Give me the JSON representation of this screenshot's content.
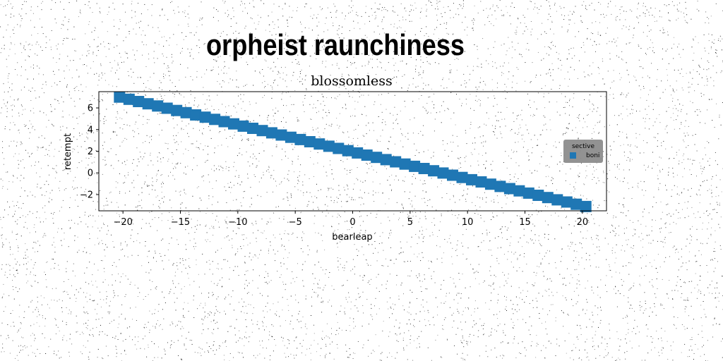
{
  "page": {
    "background": "#ffffff",
    "noise_color": "#000000"
  },
  "figure": {
    "suptitle": "orpheist raunchiness"
  },
  "chart_data": {
    "type": "line",
    "title": "blossomless",
    "xlabel": "bearleap",
    "ylabel": "retempt",
    "xlim": [
      -22.1,
      22.1
    ],
    "ylim": [
      -3.5,
      7.5
    ],
    "xticks": [
      -20,
      -15,
      -10,
      -5,
      0,
      5,
      10,
      15,
      20
    ],
    "yticks": [
      -2,
      0,
      2,
      4,
      6
    ],
    "grid": false,
    "legend": {
      "title": "sective",
      "placement": "center-right",
      "background": "#8c8c8c"
    },
    "series": [
      {
        "name": "boni",
        "color": "#1f77b4",
        "marker": "square",
        "x_start": -20.3,
        "x_end": 20.3,
        "y_start": 7.0,
        "y_end": -3.1,
        "points": 50
      }
    ]
  }
}
